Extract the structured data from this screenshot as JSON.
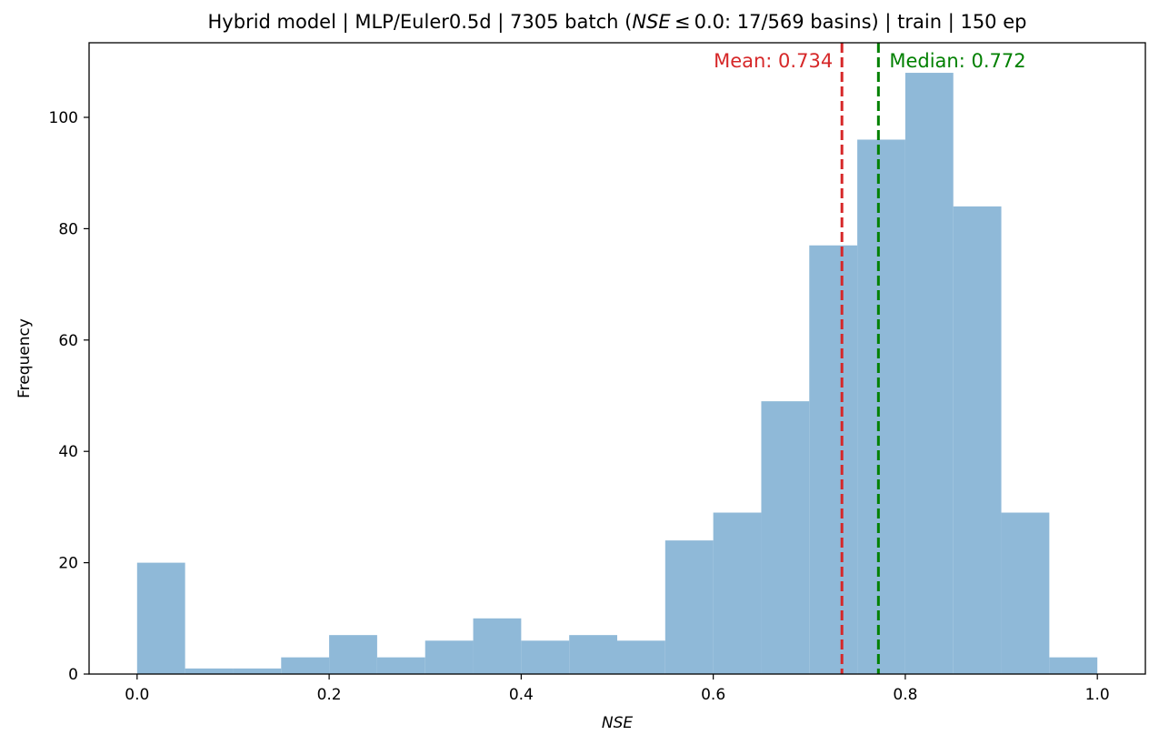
{
  "chart_data": {
    "type": "bar",
    "title": {
      "prefix": "Hybrid model | MLP/Euler0.5d | 7305 batch (",
      "metric": "NSE",
      "cond": " ≤ 0.0: 17/569 basins) | train | 150 ep"
    },
    "xlabel": "NSE",
    "ylabel": "Frequency",
    "xlim": [
      -0.05,
      1.05
    ],
    "ylim": [
      0,
      113.4
    ],
    "bin_edges": [
      0.0,
      0.05,
      0.1,
      0.15,
      0.2,
      0.25,
      0.3,
      0.35,
      0.4,
      0.45,
      0.5,
      0.55,
      0.6,
      0.65,
      0.7,
      0.75,
      0.8,
      0.85,
      0.9,
      0.95,
      1.0
    ],
    "values": [
      20,
      1,
      1,
      3,
      7,
      3,
      6,
      10,
      6,
      7,
      6,
      24,
      29,
      49,
      77,
      96,
      108,
      84,
      29,
      3
    ],
    "bar_color": "#8fb9d8",
    "xticks": [
      0.0,
      0.2,
      0.4,
      0.6,
      0.8,
      1.0
    ],
    "xtick_labels": [
      "0.0",
      "0.2",
      "0.4",
      "0.6",
      "0.8",
      "1.0"
    ],
    "yticks": [
      0,
      20,
      40,
      60,
      80,
      100
    ],
    "ytick_labels": [
      "0",
      "20",
      "40",
      "60",
      "80",
      "100"
    ],
    "grid": false,
    "legend": "none",
    "mean": {
      "value": 0.734,
      "label": "Mean: 0.734",
      "color": "#d62728"
    },
    "median": {
      "value": 0.772,
      "label": "Median: 0.772",
      "color": "#008000"
    }
  }
}
